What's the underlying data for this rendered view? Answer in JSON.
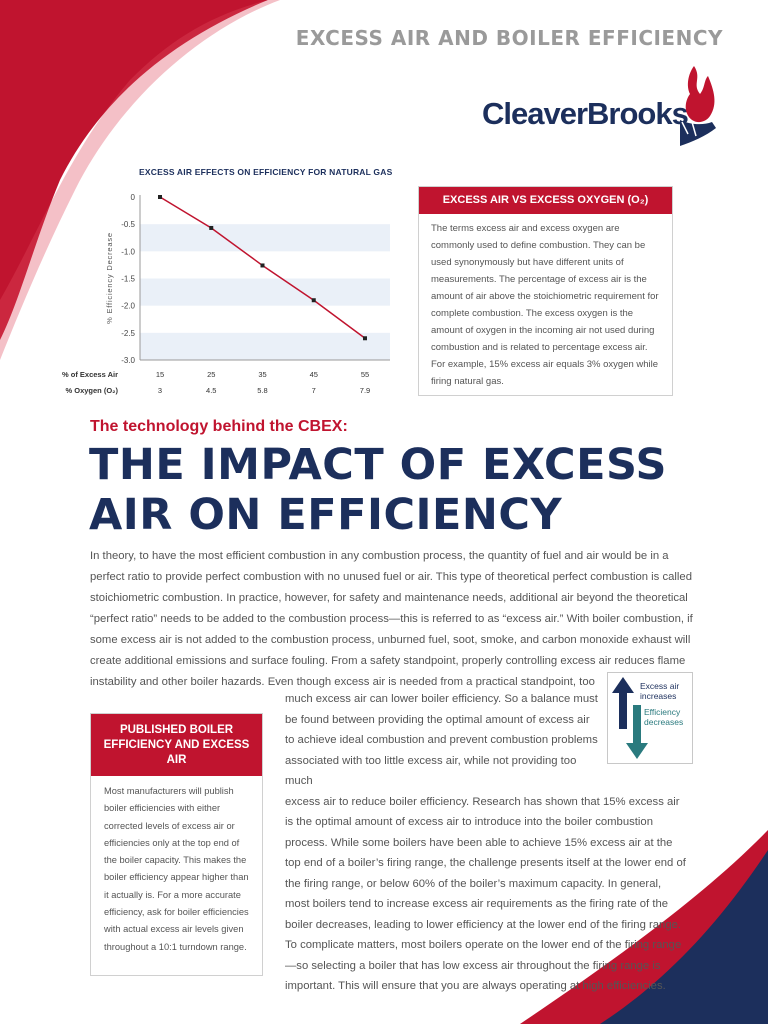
{
  "colors": {
    "brand_red": "#c0142f",
    "navy": "#1c2f5c",
    "teal": "#2a7a7e",
    "text_gray": "#555555",
    "band": "#eaf0f8"
  },
  "header": {
    "title": "EXCESS AIR AND BOILER EFFICIENCY"
  },
  "logo": {
    "name": "CleaverBrooks",
    "registered": "®",
    "icon": "flame-hand-icon"
  },
  "chart_data": {
    "type": "line",
    "title": "EXCESS AIR EFFECTS ON EFFICIENCY FOR NATURAL GAS",
    "ylabel": "% Efficiency Decrease",
    "ylim": [
      -3.0,
      0
    ],
    "yticks": [
      "0",
      "-0.5",
      "-1.0",
      "-1.5",
      "-2.0",
      "-2.5",
      "-3.0"
    ],
    "x_axis_rows": [
      {
        "label": "% of Excess Air",
        "ticks": [
          "15",
          "25",
          "35",
          "45",
          "55"
        ]
      },
      {
        "label": "% Oxygen (O₂)",
        "ticks": [
          "3",
          "4.5",
          "5.8",
          "7",
          "7.9"
        ]
      }
    ],
    "x": [
      15,
      25,
      35,
      45,
      55
    ],
    "values": [
      0,
      -0.57,
      -1.26,
      -1.9,
      -2.6
    ],
    "xlim": [
      15,
      55
    ],
    "grid": "alternating horizontal bands",
    "line_color": "#c0142f"
  },
  "sidebar_top": {
    "heading": "EXCESS AIR VS EXCESS OXYGEN (O₂)",
    "body": "The terms excess air and excess oxygen are commonly used to define combustion. They can be used synonymously but have different units of measurements. The percentage of excess air is the amount of air above the stoichiometric requirement for complete combustion. The excess oxygen is the amount of oxygen in the incoming air not used during combustion and is related to percentage excess air. For example, 15% excess air equals 3% oxygen while firing natural gas."
  },
  "article": {
    "kicker": "The technology behind the CBEX:",
    "headline_line1": "THE IMPACT OF EXCESS",
    "headline_line2": "AIR ON EFFICIENCY",
    "body_top": "In theory, to have the most efficient combustion in any combustion process, the quantity of fuel and air would be in a perfect ratio to provide perfect combustion with no unused fuel or air. This type of theoretical perfect combustion is called stoichiometric combustion. In practice, however, for safety and maintenance needs, additional air beyond the theoretical “perfect ratio” needs to be added to the combustion process—this is referred to as “excess air.” With boiler combustion, if some excess air is not added to the combustion process, unburned fuel, soot, smoke, and carbon monoxide exhaust will create additional emissions and surface fouling. From a safety standpoint, properly controlling excess air reduces flame instability and other boiler hazards. Even though excess air is needed from a practical standpoint, too",
    "body_col_narrow": "much excess air can lower boiler efficiency. So a balance must be found between providing the optimal amount of excess air to achieve ideal combustion and prevent combustion problems associated with too little excess air, while not providing too much",
    "body_col_wide": "excess air to reduce boiler efficiency. Research has shown that 15% excess air is the optimal amount of excess air to introduce into the boiler combustion process. While some boilers have been able to achieve 15% excess air at the top end of a boiler’s firing range, the challenge presents itself at the lower end of the firing range, or below 60% of the boiler’s maximum capacity. In general, most boilers tend to increase excess air requirements as the firing rate of the boiler decreases, leading to lower efficiency at the lower end of the firing range. To complicate matters, most boilers operate on the lower end of the firing range—so selecting a boiler that has low excess air throughout the firing range is important. This will ensure that you are always operating at high efficiencies."
  },
  "arrow_legend": {
    "up_label_line1": "Excess air",
    "up_label_line2": "increases",
    "down_label_line1": "Efficiency",
    "down_label_line2": "decreases"
  },
  "sidebar_bottom": {
    "heading": "PUBLISHED BOILER EFFICIENCY AND EXCESS AIR",
    "body": "Most manufacturers will publish boiler efficiencies with either corrected levels of excess air or efficiencies only at the top end of the boiler capacity. This makes the boiler efficiency appear higher than it actually is. For a more accurate efficiency, ask for boiler efficiencies with actual excess air levels given throughout a 10:1 turndown range."
  }
}
